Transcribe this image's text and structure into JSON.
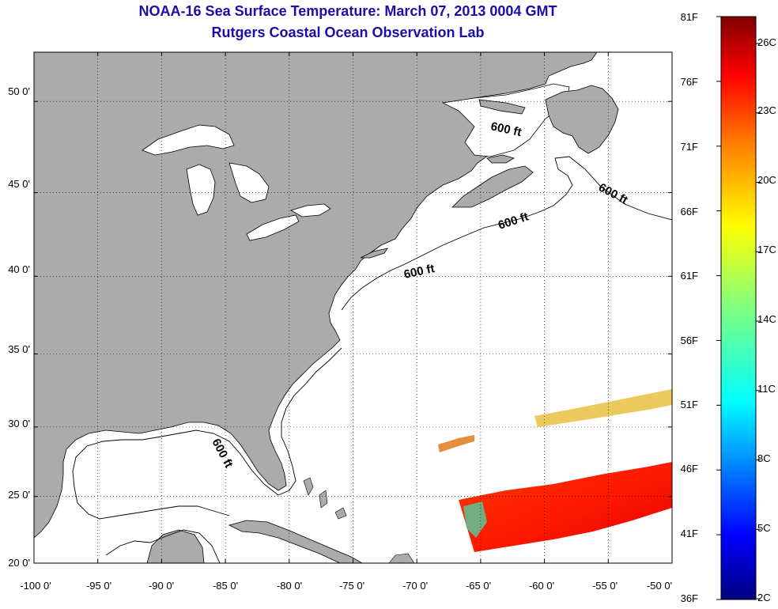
{
  "title": {
    "line1": "NOAA-16 Sea Surface Temperature:  March 07, 2013 0004 GMT",
    "line2": "Rutgers Coastal Ocean Observation Lab"
  },
  "map": {
    "lon_range": [
      -100,
      -50
    ],
    "lat_range": [
      20,
      52.5
    ],
    "land_color": "#ababab",
    "water_color": "#ffffff",
    "grid_style": "dotted",
    "lat_ticks": [
      {
        "value": 20,
        "label": "20 0'"
      },
      {
        "value": 25,
        "label": "25 0'"
      },
      {
        "value": 30,
        "label": "30 0'"
      },
      {
        "value": 35,
        "label": "35 0'"
      },
      {
        "value": 40,
        "label": "40 0'"
      },
      {
        "value": 45,
        "label": "45 0'"
      },
      {
        "value": 50,
        "label": "50 0'"
      }
    ],
    "lon_ticks": [
      {
        "value": -100,
        "label": "-100 0'"
      },
      {
        "value": -95,
        "label": "-95 0'"
      },
      {
        "value": -90,
        "label": "-90 0'"
      },
      {
        "value": -85,
        "label": "-85 0'"
      },
      {
        "value": -80,
        "label": "-80 0'"
      },
      {
        "value": -75,
        "label": "-75 0'"
      },
      {
        "value": -70,
        "label": "-70 0'"
      },
      {
        "value": -65,
        "label": "-65 0'"
      },
      {
        "value": -60,
        "label": "-60 0'"
      },
      {
        "value": -55,
        "label": "-55 0'"
      },
      {
        "value": -50,
        "label": "-50 0'"
      }
    ],
    "contour_labels": [
      "600 ft",
      "600 ft",
      "600 ft",
      "600 ft",
      "600 ft"
    ]
  },
  "colorbar": {
    "fahrenheit_labels": [
      "81F",
      "76F",
      "71F",
      "66F",
      "61F",
      "56F",
      "51F",
      "46F",
      "41F",
      "36F"
    ],
    "celsius_labels": [
      "26C",
      "23C",
      "20C",
      "17C",
      "14C",
      "11C",
      "8C",
      "5C",
      "2C"
    ],
    "colormap": "jet",
    "colors": [
      "#00007f",
      "#0000ff",
      "#007fff",
      "#00ffff",
      "#7fff7f",
      "#ffff00",
      "#ff7f00",
      "#ff0000",
      "#7f0000"
    ]
  }
}
